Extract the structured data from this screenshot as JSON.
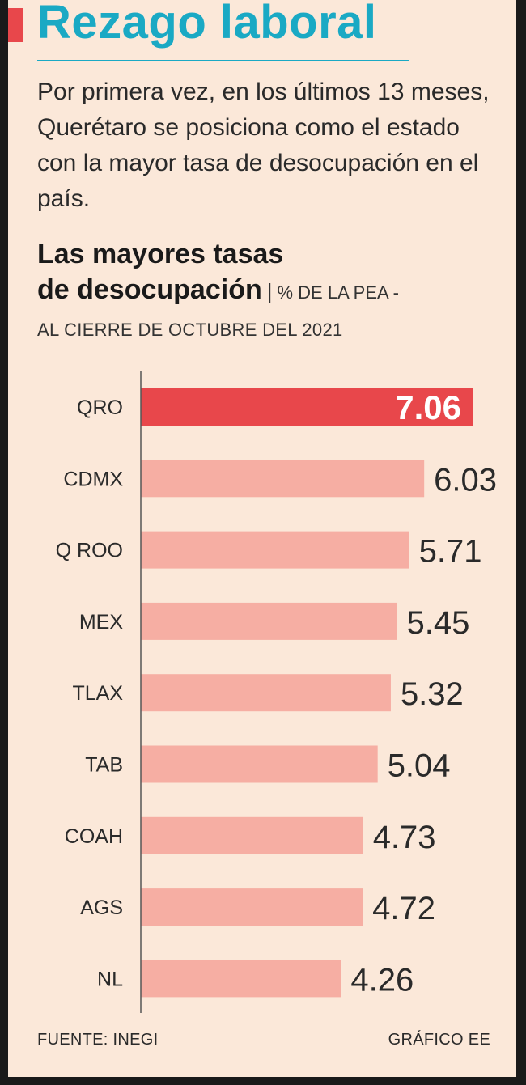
{
  "header": {
    "title": "Rezago laboral",
    "intro": "Por primera vez, en los últimos 13 meses, Querétaro se posiciona como el estado con la mayor tasa de desocupación en el país."
  },
  "chart_header": {
    "title_line1": "Las mayores tasas",
    "title_line2": "de desocupación",
    "separator": "|",
    "unit_part1": "% DE LA PEA -",
    "unit_part2": "AL CIERRE DE OCTUBRE DEL 2021"
  },
  "footer": {
    "source": "FUENTE: INEGI",
    "credit": "GRÁFICO EE"
  },
  "colors": {
    "highlight": "#e8474b",
    "bar": "#f6aea3",
    "background": "#fbe8d9",
    "title": "#1aa9c4",
    "axis": "#555555"
  },
  "chart_data": {
    "type": "bar",
    "orientation": "horizontal",
    "title": "Las mayores tasas de desocupación",
    "unit": "% DE LA PEA - AL CIERRE DE OCTUBRE DEL 2021",
    "categories": [
      "QRO",
      "CDMX",
      "Q ROO",
      "MEX",
      "TLAX",
      "TAB",
      "COAH",
      "AGS",
      "NL"
    ],
    "values": [
      7.06,
      6.03,
      5.71,
      5.45,
      5.32,
      5.04,
      4.73,
      4.72,
      4.26
    ],
    "labels": [
      "7.06",
      "6.03",
      "5.71",
      "5.45",
      "5.32",
      "5.04",
      "4.73",
      "4.72",
      "4.26"
    ],
    "highlight_index": 0,
    "xlim": [
      0,
      7.06
    ]
  }
}
